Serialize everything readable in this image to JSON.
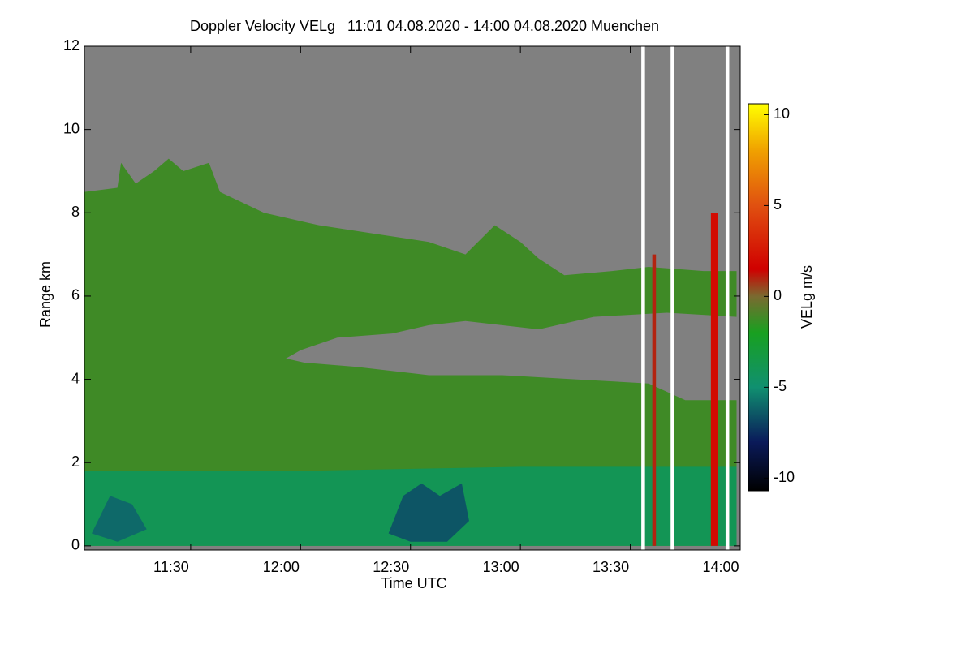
{
  "chart_data": {
    "type": "heatmap",
    "title": "Doppler Velocity VELg   11:01 04.08.2020 - 14:00 04.08.2020 Muenchen",
    "x_label": "Time UTC",
    "y_label": "Range km",
    "colorbar_label": "VELg m/s",
    "xlim": [
      "11:01",
      "14:00"
    ],
    "xticks": [
      "11:30",
      "12:00",
      "12:30",
      "13:00",
      "13:30",
      "14:00"
    ],
    "ylim": [
      -0.1,
      12
    ],
    "yticks": [
      0,
      2,
      4,
      6,
      8,
      10,
      12
    ],
    "clim": [
      -10.7,
      10.6
    ],
    "cticks": [
      -10,
      -5,
      0,
      5,
      10
    ],
    "colormap": [
      {
        "value": -10.7,
        "color": "#000000"
      },
      {
        "value": -8,
        "color": "#0a1a5a"
      },
      {
        "value": -5,
        "color": "#109070"
      },
      {
        "value": -2,
        "color": "#18a020"
      },
      {
        "value": 0,
        "color": "#7a6a30"
      },
      {
        "value": 1.5,
        "color": "#d00000"
      },
      {
        "value": 5,
        "color": "#e05010"
      },
      {
        "value": 8,
        "color": "#f0a000"
      },
      {
        "value": 10.6,
        "color": "#ffff00"
      }
    ],
    "no_data_color": "#808080",
    "regions": [
      {
        "value": -1.2,
        "points": [
          [
            "11:01",
            8.5
          ],
          [
            "11:10",
            8.6
          ],
          [
            "11:11",
            9.2
          ],
          [
            "11:15",
            8.7
          ],
          [
            "11:20",
            9.0
          ],
          [
            "11:24",
            9.3
          ],
          [
            "11:28",
            9.0
          ],
          [
            "11:35",
            9.2
          ],
          [
            "11:38",
            8.5
          ],
          [
            "11:50",
            8.0
          ],
          [
            "12:05",
            7.7
          ],
          [
            "12:20",
            7.5
          ],
          [
            "12:35",
            7.3
          ],
          [
            "12:45",
            7.0
          ],
          [
            "12:53",
            7.7
          ],
          [
            "13:00",
            7.3
          ],
          [
            "13:05",
            6.9
          ],
          [
            "13:12",
            6.5
          ],
          [
            "13:25",
            6.6
          ],
          [
            "13:35",
            6.7
          ],
          [
            "13:50",
            6.6
          ],
          [
            "13:59",
            6.6
          ],
          [
            "13:59",
            5.5
          ],
          [
            "13:40",
            5.6
          ],
          [
            "13:20",
            5.5
          ],
          [
            "13:05",
            5.2
          ],
          [
            "12:55",
            5.3
          ],
          [
            "12:45",
            5.4
          ],
          [
            "12:35",
            5.3
          ],
          [
            "12:25",
            5.1
          ],
          [
            "12:10",
            5.0
          ],
          [
            "12:00",
            4.7
          ],
          [
            "11:56",
            4.5
          ],
          [
            "12:01",
            4.4
          ],
          [
            "12:15",
            4.3
          ],
          [
            "12:35",
            4.1
          ],
          [
            "12:55",
            4.1
          ],
          [
            "13:15",
            4.0
          ],
          [
            "13:35",
            3.9
          ],
          [
            "13:45",
            3.5
          ],
          [
            "13:59",
            3.5
          ],
          [
            "13:59",
            0
          ],
          [
            "11:01",
            0
          ]
        ]
      },
      {
        "value": -4,
        "points": [
          [
            "11:01",
            1.8
          ],
          [
            "12:00",
            1.8
          ],
          [
            "13:00",
            1.9
          ],
          [
            "13:59",
            1.9
          ],
          [
            "13:59",
            0
          ],
          [
            "11:01",
            0
          ]
        ]
      },
      {
        "value": -6.5,
        "points": [
          [
            "12:24",
            0.3
          ],
          [
            "12:28",
            1.2
          ],
          [
            "12:33",
            1.5
          ],
          [
            "12:38",
            1.2
          ],
          [
            "12:44",
            1.5
          ],
          [
            "12:46",
            0.6
          ],
          [
            "12:40",
            0.1
          ],
          [
            "12:30",
            0.1
          ]
        ]
      },
      {
        "value": -6,
        "points": [
          [
            "11:03",
            0.3
          ],
          [
            "11:08",
            1.2
          ],
          [
            "11:14",
            1.0
          ],
          [
            "11:18",
            0.4
          ],
          [
            "11:10",
            0.1
          ]
        ]
      },
      {
        "value": 2,
        "points": [
          [
            "13:52",
            0
          ],
          [
            "13:52",
            8.0
          ],
          [
            "13:54",
            8.0
          ],
          [
            "13:54",
            0
          ]
        ]
      },
      {
        "value": 1,
        "points": [
          [
            "13:36",
            0
          ],
          [
            "13:36",
            7.0
          ],
          [
            "13:37",
            7.0
          ],
          [
            "13:37",
            0
          ]
        ]
      }
    ],
    "missing": [
      [
        "13:33",
        "13:34"
      ],
      [
        "13:41",
        "13:42"
      ],
      [
        "13:56",
        "13:57"
      ]
    ]
  }
}
